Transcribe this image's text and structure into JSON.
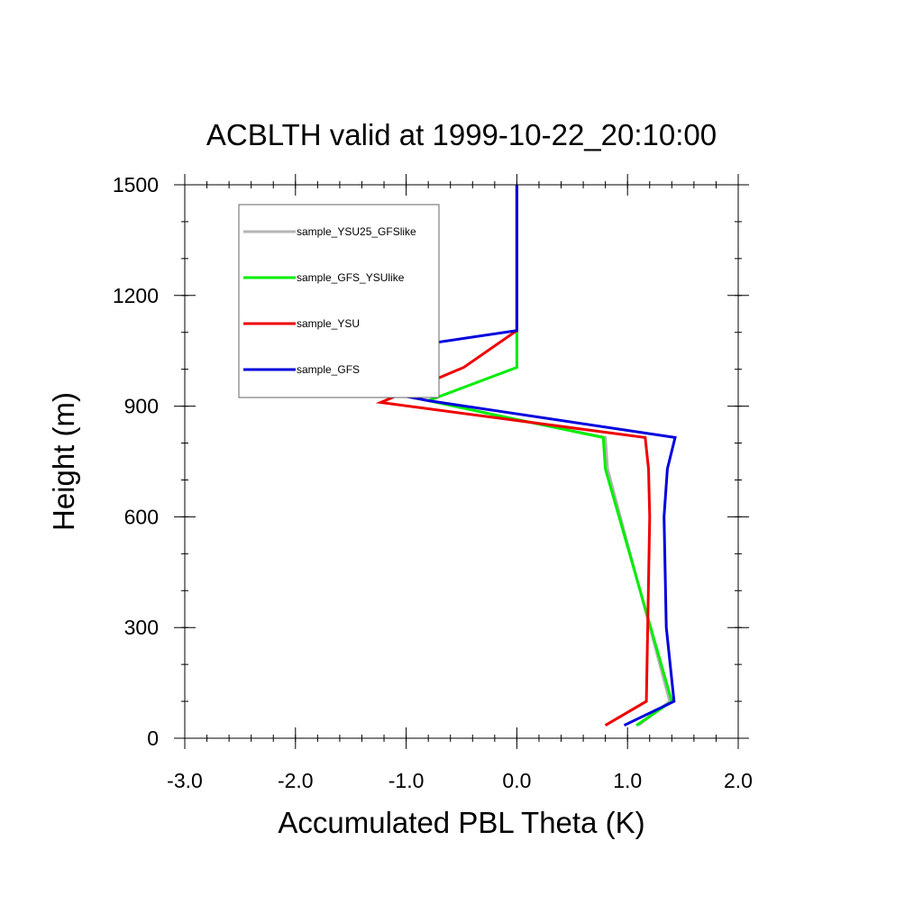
{
  "chart_data": {
    "type": "line",
    "title": "ACBLTH valid at 1999-10-22_20:10:00",
    "xlabel": "Accumulated PBL Theta (K)",
    "ylabel": "Height (m)",
    "xlim": [
      -3.0,
      2.0
    ],
    "ylim": [
      0,
      1500
    ],
    "x_ticks": [
      -3.0,
      -2.0,
      -1.0,
      0.0,
      1.0,
      2.0
    ],
    "x_tick_labels": [
      "-3.0",
      "-2.0",
      "-1.0",
      "0.0",
      "1.0",
      "2.0"
    ],
    "y_ticks": [
      0,
      300,
      600,
      900,
      1200,
      1500
    ],
    "y_tick_labels": [
      "0",
      "300",
      "600",
      "900",
      "1200",
      "1500"
    ],
    "grid": false,
    "legend_position": "top-left",
    "series": [
      {
        "name": "sample_YSU25_GFSlike",
        "color": "#b4b4b4",
        "points": [
          [
            1.1,
            35
          ],
          [
            1.38,
            100
          ],
          [
            0.82,
            730
          ],
          [
            0.8,
            815
          ],
          [
            -0.1,
            870
          ],
          [
            -0.8,
            915
          ],
          [
            0.0,
            1005
          ],
          [
            0.0,
            1100
          ],
          [
            0.0,
            1500
          ]
        ]
      },
      {
        "name": "sample_GFS_YSUlike",
        "color": "#00ee00",
        "points": [
          [
            1.08,
            35
          ],
          [
            1.4,
            100
          ],
          [
            0.8,
            730
          ],
          [
            0.78,
            815
          ],
          [
            -0.1,
            870
          ],
          [
            -0.8,
            915
          ],
          [
            0.0,
            1005
          ],
          [
            0.0,
            1100
          ],
          [
            0.0,
            1500
          ]
        ]
      },
      {
        "name": "sample_YSU",
        "color": "#ee0000",
        "points": [
          [
            0.8,
            35
          ],
          [
            1.17,
            100
          ],
          [
            1.2,
            600
          ],
          [
            1.19,
            730
          ],
          [
            1.16,
            815
          ],
          [
            -1.23,
            910
          ],
          [
            -0.48,
            1005
          ],
          [
            0.0,
            1105
          ],
          [
            0.0,
            1500
          ]
        ]
      },
      {
        "name": "sample_GFS",
        "color": "#0000dd",
        "points": [
          [
            0.97,
            35
          ],
          [
            1.42,
            100
          ],
          [
            1.35,
            300
          ],
          [
            1.33,
            600
          ],
          [
            1.36,
            730
          ],
          [
            1.43,
            815
          ],
          [
            -0.8,
            915
          ],
          [
            -2.22,
            995
          ],
          [
            -2.25,
            1005
          ],
          [
            0.0,
            1105
          ],
          [
            0.0,
            1500
          ]
        ]
      }
    ]
  }
}
